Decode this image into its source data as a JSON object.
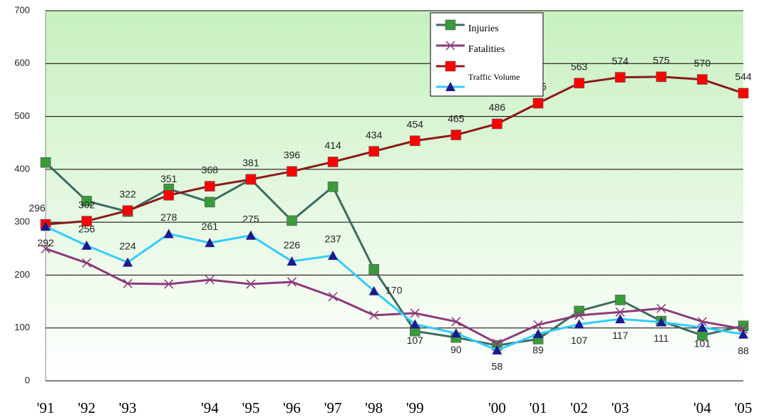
{
  "chart_data": {
    "type": "line",
    "categories": [
      "'91",
      "'92",
      "'93",
      null,
      "'94",
      "'95",
      "'96",
      "'97",
      "'98",
      "'99",
      null,
      "'00",
      "'01",
      "'02",
      "'03",
      null,
      "'04",
      "'05"
    ],
    "ylim": [
      0,
      700
    ],
    "yticks": [
      0,
      100,
      200,
      300,
      400,
      500,
      600,
      700
    ],
    "grid": true,
    "series": [
      {
        "name": "Injuries",
        "color": "#3d6b62",
        "marker": "square",
        "marker_color": "#3a9a3a",
        "values": [
          413,
          340,
          320,
          363,
          338,
          381,
          303,
          367,
          211,
          94,
          82,
          67,
          79,
          132,
          153,
          113,
          86,
          104
        ]
      },
      {
        "name": "Fatalities",
        "color": "#8b3a7a",
        "marker": "x",
        "marker_color": "#8b3a7a",
        "values": [
          250,
          223,
          184,
          183,
          191,
          183,
          187,
          159,
          124,
          128,
          112,
          71,
          106,
          124,
          130,
          137,
          112,
          98
        ]
      },
      {
        "name": null,
        "color": "#8b1a1a",
        "marker": "square",
        "marker_color": "#ff0000",
        "labels": true,
        "label_side": "above",
        "values": [
          296,
          302,
          322,
          351,
          368,
          381,
          396,
          414,
          434,
          454,
          465,
          486,
          525,
          563,
          574,
          575,
          570,
          544
        ]
      },
      {
        "name": "Traffic Volume",
        "color": "#33ccff",
        "marker": "triangle",
        "marker_color": "#1a1a8c",
        "labels": true,
        "label_side": "mixed",
        "values": [
          292,
          256,
          224,
          278,
          261,
          275,
          226,
          237,
          170,
          107,
          90,
          58,
          89,
          107,
          117,
          111,
          101,
          88
        ]
      }
    ],
    "legend": "top-right"
  }
}
